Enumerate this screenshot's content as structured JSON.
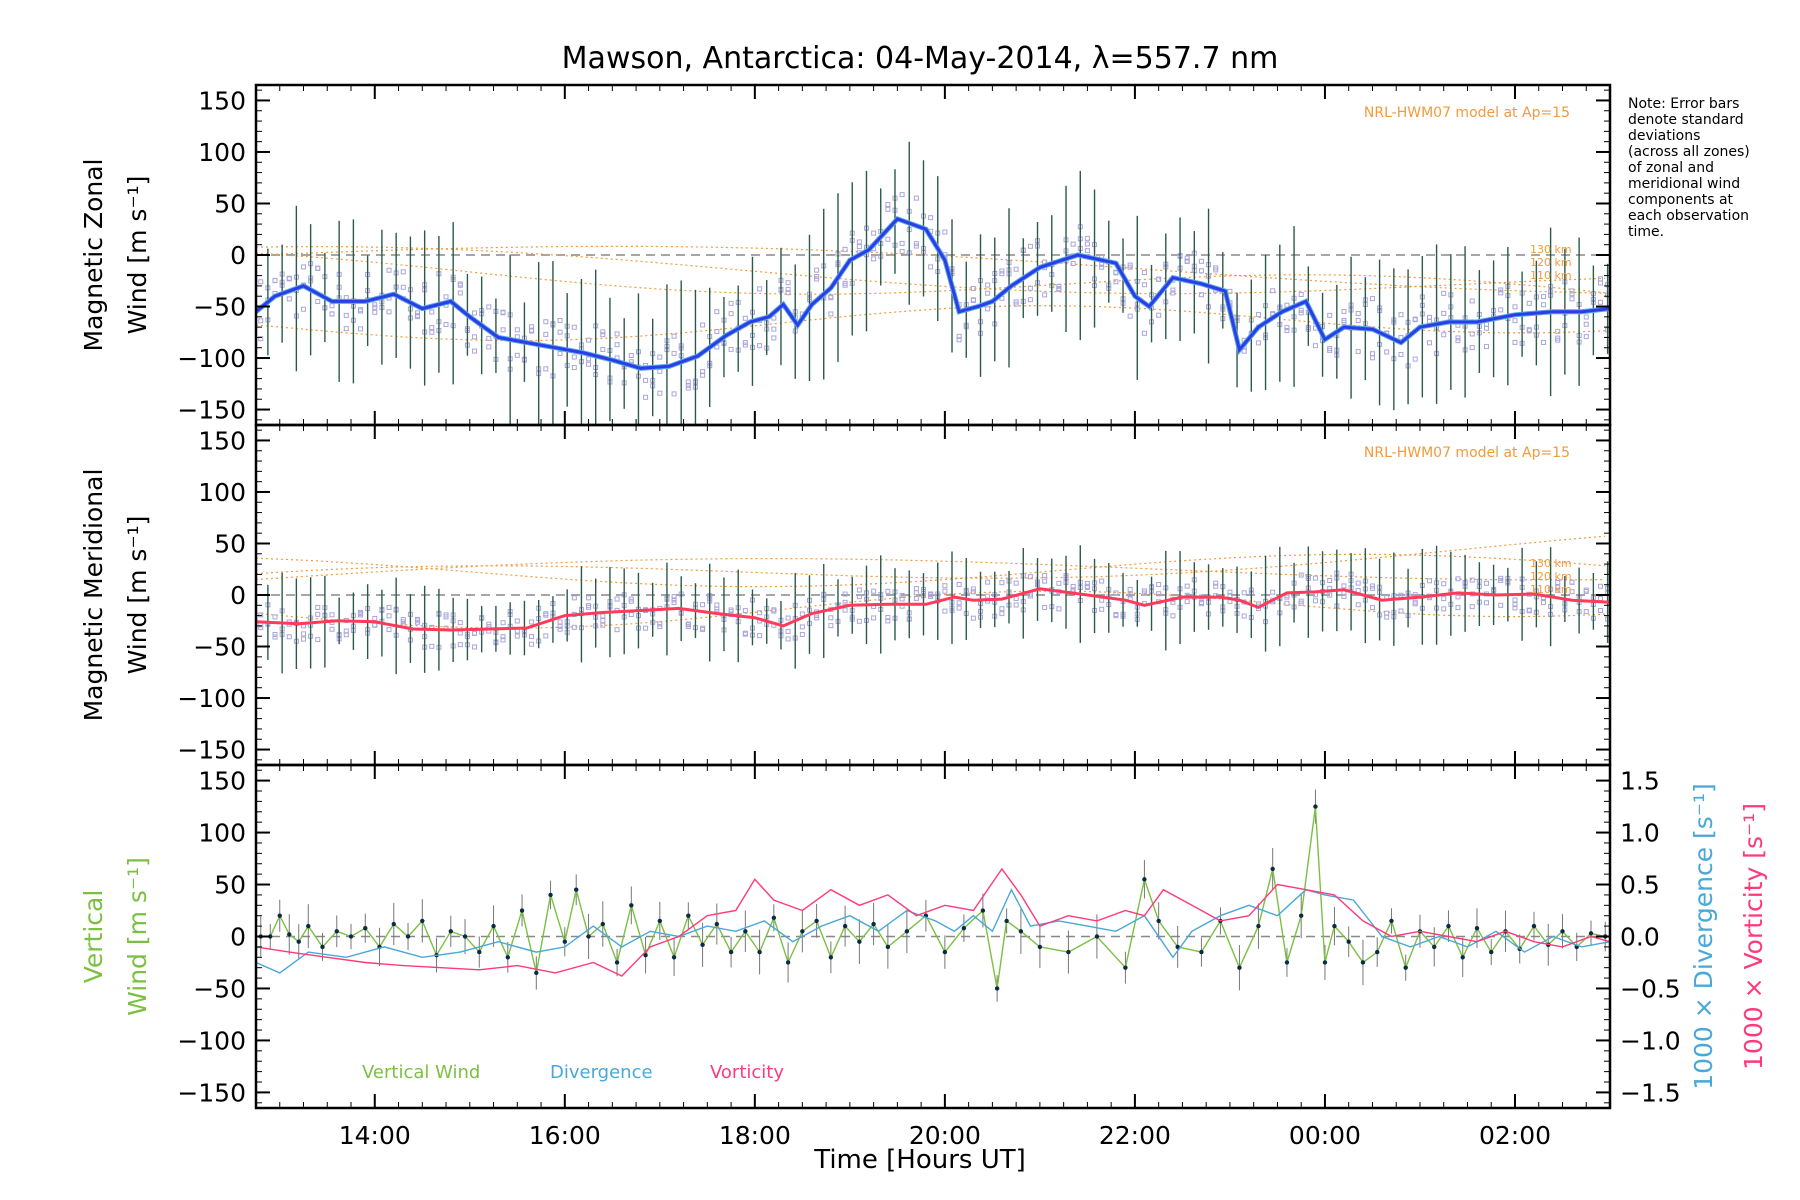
{
  "title": "Mawson, Antarctica: 04-May-2014, λ=557.7 nm",
  "xlabel": "Time [Hours UT]",
  "note": [
    "Note: Error bars",
    "denote standard",
    "deviations",
    "(across all zones)",
    "of zonal and",
    "meridional wind",
    "components at",
    "each observation",
    "time."
  ],
  "colors": {
    "zonal_fit": "#2b3ee6",
    "zonal_light": "#57a6e8",
    "meridional_fit": "#ff3a5a",
    "errorbar": "#2c5a4a",
    "model": "#f39a3c",
    "zone_points": "#a8a6dc",
    "vertical": "#7bc043",
    "divergence": "#4aa8d8",
    "vorticity": "#ff3a7a"
  },
  "chart_data": [
    {
      "type": "line",
      "id": "zonal",
      "ylabel": [
        "Magnetic Zonal",
        "Wind [m s⁻¹]"
      ],
      "xlim": [
        12.75,
        27.0
      ],
      "ylim": [
        -165,
        165
      ],
      "x_ticks": [
        14,
        16,
        18,
        20,
        22,
        24,
        26
      ],
      "x_tick_labels": [
        "14:00",
        "16:00",
        "18:00",
        "20:00",
        "22:00",
        "00:00",
        "02:00"
      ],
      "y_ticks": [
        -150,
        -100,
        -50,
        0,
        50,
        100,
        150
      ],
      "y_tick_labels": [
        "−150",
        "−100",
        "−50",
        "0",
        "50",
        "100",
        "150"
      ],
      "model_label": "NRL-HWM07 model at Ap=15",
      "model_altitudes": [
        "130 km",
        "120 km",
        "110 km"
      ],
      "series": [
        {
          "role": "fit",
          "x": [
            12.75,
            12.95,
            13.25,
            13.55,
            13.9,
            14.2,
            14.5,
            14.8,
            15.0,
            15.3,
            15.6,
            15.9,
            16.2,
            16.5,
            16.8,
            17.1,
            17.4,
            17.7,
            17.95,
            18.15,
            18.3,
            18.45,
            18.6,
            18.8,
            19.0,
            19.2,
            19.5,
            19.8,
            20.0,
            20.15,
            20.35,
            20.5,
            20.7,
            21.0,
            21.4,
            21.8,
            22.0,
            22.15,
            22.4,
            22.7,
            22.95,
            23.1,
            23.3,
            23.55,
            23.8,
            24.0,
            24.2,
            24.5,
            24.8,
            25.0,
            25.3,
            25.6,
            26.0,
            26.4,
            26.7,
            27.0
          ],
          "y": [
            -55,
            -40,
            -30,
            -45,
            -45,
            -38,
            -52,
            -45,
            -60,
            -80,
            -85,
            -90,
            -95,
            -102,
            -110,
            -108,
            -98,
            -78,
            -65,
            -60,
            -48,
            -68,
            -48,
            -32,
            -5,
            5,
            35,
            25,
            -5,
            -55,
            -50,
            -45,
            -30,
            -12,
            0,
            -8,
            -40,
            -50,
            -22,
            -28,
            -35,
            -92,
            -70,
            -55,
            -45,
            -82,
            -70,
            -72,
            -85,
            -70,
            -65,
            -65,
            -58,
            -55,
            -55,
            -52
          ]
        }
      ]
    },
    {
      "type": "line",
      "id": "meridional",
      "ylabel": [
        "Magnetic Meridional",
        "Wind [m s⁻¹]"
      ],
      "xlim": [
        12.75,
        27.0
      ],
      "ylim": [
        -165,
        165
      ],
      "x_ticks": [
        14,
        16,
        18,
        20,
        22,
        24,
        26
      ],
      "y_ticks": [
        -150,
        -100,
        -50,
        0,
        50,
        100,
        150
      ],
      "y_tick_labels": [
        "−150",
        "−100",
        "−50",
        "0",
        "50",
        "100",
        "150"
      ],
      "model_label": "NRL-HWM07 model at Ap=15",
      "model_altitudes": [
        "130 km",
        "120 km",
        "110 km"
      ],
      "series": [
        {
          "role": "fit",
          "x": [
            12.75,
            13.2,
            13.6,
            14.0,
            14.4,
            14.8,
            15.2,
            15.6,
            16.0,
            16.4,
            16.8,
            17.2,
            17.6,
            18.0,
            18.3,
            18.6,
            19.0,
            19.4,
            19.8,
            20.1,
            20.3,
            20.6,
            21.0,
            21.5,
            21.9,
            22.1,
            22.5,
            22.9,
            23.1,
            23.3,
            23.6,
            23.9,
            24.2,
            24.6,
            25.0,
            25.4,
            25.8,
            26.2,
            26.6,
            27.0
          ],
          "y": [
            -26,
            -28,
            -25,
            -26,
            -33,
            -34,
            -33,
            -32,
            -20,
            -17,
            -15,
            -13,
            -18,
            -22,
            -30,
            -18,
            -10,
            -9,
            -9,
            -2,
            -5,
            -4,
            6,
            0,
            -5,
            -10,
            -2,
            -2,
            -5,
            -12,
            2,
            3,
            5,
            -5,
            -2,
            2,
            0,
            1,
            -5,
            -7
          ]
        }
      ]
    },
    {
      "type": "line",
      "id": "vertical",
      "ylabel": [
        "Vertical",
        "Wind [m s⁻¹]"
      ],
      "y2label_divergence": "1000 × Divergence [s⁻¹]",
      "y2label_vorticity": "1000 × Vorticity [s⁻¹]",
      "xlim": [
        12.75,
        27.0
      ],
      "ylim": [
        -165,
        165
      ],
      "y2lim": [
        -1.65,
        1.65
      ],
      "x_ticks": [
        14,
        16,
        18,
        20,
        22,
        24,
        26
      ],
      "x_tick_labels": [
        "14:00",
        "16:00",
        "18:00",
        "20:00",
        "22:00",
        "00:00",
        "02:00"
      ],
      "y_ticks": [
        -150,
        -100,
        -50,
        0,
        50,
        100,
        150
      ],
      "y_tick_labels": [
        "−150",
        "−100",
        "−50",
        "0",
        "50",
        "100",
        "150"
      ],
      "y2_ticks": [
        -1.5,
        -1.0,
        -0.5,
        0.0,
        0.5,
        1.0,
        1.5
      ],
      "y2_tick_labels": [
        "−1.5",
        "−1.0",
        "−0.5",
        "0.0",
        "0.5",
        "1.0",
        "1.5"
      ],
      "legend": [
        "Vertical Wind",
        "Divergence",
        "Vorticity"
      ],
      "series": [
        {
          "name": "Vertical Wind",
          "axis": "left",
          "x": [
            12.8,
            12.9,
            13.0,
            13.1,
            13.2,
            13.3,
            13.45,
            13.6,
            13.75,
            13.9,
            14.05,
            14.2,
            14.35,
            14.5,
            14.65,
            14.8,
            14.95,
            15.1,
            15.25,
            15.4,
            15.55,
            15.7,
            15.85,
            16.0,
            16.12,
            16.25,
            16.4,
            16.55,
            16.7,
            16.85,
            17.0,
            17.15,
            17.3,
            17.45,
            17.6,
            17.75,
            17.9,
            18.05,
            18.2,
            18.35,
            18.5,
            18.65,
            18.8,
            18.95,
            19.1,
            19.25,
            19.4,
            19.6,
            19.8,
            20.0,
            20.2,
            20.4,
            20.55,
            20.65,
            20.8,
            21.0,
            21.3,
            21.6,
            21.9,
            22.1,
            22.25,
            22.45,
            22.7,
            22.9,
            23.1,
            23.3,
            23.45,
            23.6,
            23.75,
            23.9,
            24.0,
            24.1,
            24.25,
            24.4,
            24.55,
            24.7,
            24.85,
            25.0,
            25.15,
            25.3,
            25.45,
            25.6,
            25.75,
            25.9,
            26.05,
            26.2,
            26.35,
            26.5,
            26.65,
            26.8,
            26.95
          ],
          "y": [
            0,
            0,
            20,
            2,
            -5,
            10,
            -10,
            5,
            0,
            8,
            -10,
            12,
            0,
            15,
            -18,
            5,
            0,
            -15,
            10,
            -20,
            25,
            -35,
            40,
            -5,
            45,
            0,
            12,
            -25,
            30,
            -18,
            15,
            -20,
            20,
            -8,
            12,
            -15,
            5,
            -15,
            18,
            -25,
            5,
            15,
            -20,
            10,
            -5,
            12,
            -10,
            5,
            20,
            -15,
            8,
            25,
            -50,
            15,
            5,
            -10,
            -15,
            0,
            -30,
            55,
            15,
            -10,
            -15,
            15,
            -30,
            10,
            65,
            -25,
            20,
            125,
            -25,
            10,
            -5,
            -25,
            -15,
            15,
            -30,
            5,
            -10,
            10,
            -20,
            8,
            -15,
            5,
            -12,
            10,
            -8,
            5,
            -10,
            3,
            0
          ]
        },
        {
          "name": "Divergence",
          "axis": "right",
          "x": [
            12.75,
            13.0,
            13.3,
            13.7,
            14.1,
            14.5,
            14.9,
            15.3,
            15.7,
            16.0,
            16.3,
            16.6,
            16.9,
            17.2,
            17.5,
            17.8,
            18.1,
            18.4,
            18.7,
            19.0,
            19.3,
            19.6,
            19.9,
            20.1,
            20.3,
            20.5,
            20.7,
            20.9,
            21.2,
            21.5,
            21.8,
            22.1,
            22.4,
            22.6,
            22.9,
            23.2,
            23.5,
            23.8,
            24.0,
            24.3,
            24.6,
            24.9,
            25.2,
            25.5,
            25.8,
            26.1,
            26.4,
            26.7,
            27.0
          ],
          "y": [
            -0.25,
            -0.35,
            -0.15,
            -0.2,
            -0.1,
            -0.2,
            -0.15,
            -0.05,
            -0.15,
            -0.1,
            0.1,
            -0.1,
            0.05,
            0.0,
            0.1,
            0.05,
            0.15,
            -0.05,
            0.1,
            0.2,
            0.05,
            0.25,
            0.15,
            0.05,
            0.2,
            0.05,
            0.45,
            0.1,
            0.15,
            0.1,
            0.05,
            0.2,
            -0.2,
            0.05,
            0.2,
            0.3,
            0.2,
            0.45,
            0.4,
            0.35,
            0.0,
            -0.1,
            0.0,
            -0.1,
            0.05,
            -0.15,
            0.0,
            -0.1,
            -0.05
          ]
        },
        {
          "name": "Vorticity",
          "axis": "right",
          "x": [
            12.75,
            13.1,
            13.5,
            13.9,
            14.3,
            14.7,
            15.1,
            15.5,
            15.9,
            16.3,
            16.6,
            16.9,
            17.2,
            17.5,
            17.8,
            18.0,
            18.2,
            18.5,
            18.8,
            19.1,
            19.4,
            19.7,
            20.0,
            20.3,
            20.6,
            20.8,
            21.0,
            21.3,
            21.6,
            21.9,
            22.1,
            22.3,
            22.6,
            22.9,
            23.2,
            23.5,
            23.8,
            24.1,
            24.4,
            24.7,
            25.0,
            25.3,
            25.6,
            25.9,
            26.2,
            26.5,
            26.8,
            27.0
          ],
          "y": [
            -0.1,
            -0.15,
            -0.2,
            -0.25,
            -0.28,
            -0.3,
            -0.32,
            -0.28,
            -0.35,
            -0.25,
            -0.38,
            -0.1,
            0.0,
            0.2,
            0.25,
            0.55,
            0.35,
            0.25,
            0.45,
            0.3,
            0.4,
            0.2,
            0.3,
            0.25,
            0.65,
            0.4,
            0.1,
            0.2,
            0.15,
            0.25,
            0.2,
            0.45,
            0.3,
            0.15,
            0.2,
            0.5,
            0.45,
            0.4,
            0.15,
            0.0,
            0.05,
            0.0,
            -0.05,
            0.05,
            -0.05,
            -0.1,
            0.0,
            -0.05
          ]
        }
      ]
    }
  ]
}
